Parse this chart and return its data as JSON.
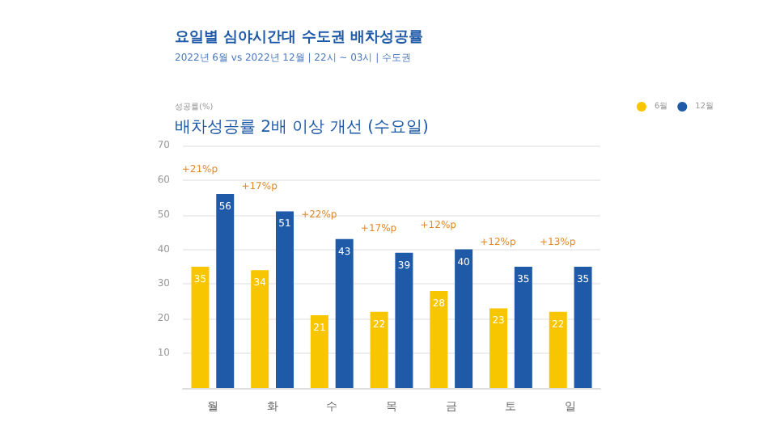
{
  "chart_data": {
    "type": "bar",
    "title": "요일별 심야시간대 수도권 배차성공률",
    "subtitle": "2022년 6월 vs 2022년 12월 | 22시 ~ 03시 | 수도권",
    "ylabel": "성공률(%)",
    "categories": [
      "월",
      "화",
      "수",
      "목",
      "금",
      "토",
      "일"
    ],
    "series": [
      {
        "name": "6월",
        "color": "#f7c600",
        "values": [
          35,
          34,
          21,
          22,
          28,
          23,
          22
        ]
      },
      {
        "name": "12월",
        "color": "#1f5aa8",
        "values": [
          56,
          51,
          43,
          39,
          40,
          35,
          35
        ]
      }
    ],
    "ylim": [
      0,
      70
    ],
    "yticks": [
      {
        "value": 0,
        "label": null
      },
      10,
      20,
      30,
      40,
      50,
      60,
      70
    ],
    "grid": "y",
    "legend": "top right",
    "data_labels": true,
    "annotations": [
      "배차성공률 2배 이상 개선 (수요일)",
      {
        "text": "+21%p",
        "x": "월",
        "y": 56
      },
      {
        "text": "+17%p",
        "x": "화",
        "y": 51
      },
      {
        "text": "+22%p",
        "x": "수",
        "y": 43
      },
      {
        "text": "+17%p",
        "x": "목",
        "y": 39
      },
      {
        "text": "+12%p",
        "x": "금",
        "y": 40
      },
      {
        "text": "+12%p",
        "x": "토",
        "y": 35
      },
      {
        "text": "+13%p",
        "x": "일",
        "y": 35
      }
    ]
  }
}
